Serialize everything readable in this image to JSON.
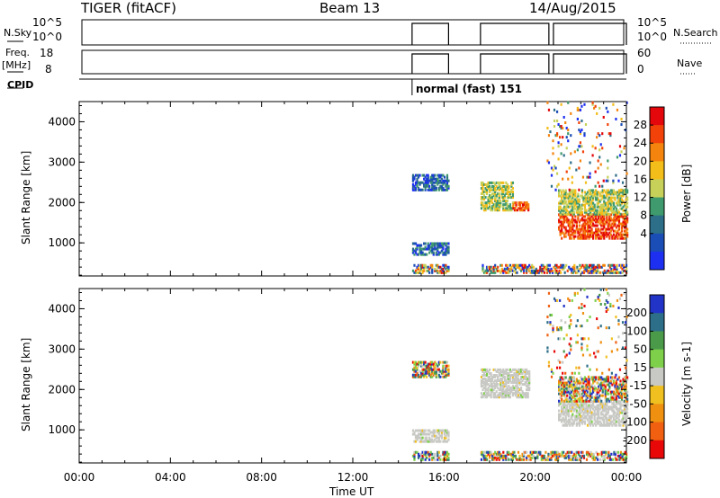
{
  "header": {
    "title": "TIGER (fitACF)",
    "beam": "Beam 13",
    "date": "14/Aug/2015"
  },
  "params_panel": {
    "nsky_label": "N.Sky",
    "nsearch_label": "N.Search",
    "freq_label": "Freq.",
    "freq_unit": "[MHz]",
    "nave_label": "Nave",
    "cpid_label": "CPID",
    "left_top_ticks": [
      "10^5",
      "10^0"
    ],
    "right_top_ticks": [
      "10^5",
      "10^0"
    ],
    "left_freq_ticks": [
      "18",
      "8"
    ],
    "right_nave_ticks": [
      "60",
      "0"
    ],
    "cpid_text": "normal (fast) 151",
    "cpid_start_hour": 14.6
  },
  "chart_data": [
    {
      "type": "heatmap",
      "title": "",
      "ylabel": "Slant Range [km]",
      "xlabel": "",
      "x_ticks": [
        "00:00",
        "04:00",
        "08:00",
        "12:00",
        "16:00",
        "20:00",
        "00:00"
      ],
      "xlim_hours": [
        0,
        24
      ],
      "ylim": [
        180,
        4500
      ],
      "y_ticks": [
        1000,
        2000,
        3000,
        4000
      ],
      "colorbar_label": "Power [dB]",
      "colorbar_ticks": [
        "28",
        "24",
        "20",
        "16",
        "12",
        "8",
        "4"
      ],
      "colorbar_colors": [
        "#e4070b",
        "#f2420a",
        "#f4840e",
        "#f3bd1a",
        "#c7d15a",
        "#3f9a6d",
        "#2d6e88",
        "#1a4db5",
        "#1d2ff0"
      ],
      "regions": [
        {
          "t0": 14.6,
          "t1": 16.2,
          "r0": 250,
          "r1": 450,
          "level": "mixed-high"
        },
        {
          "t0": 14.6,
          "t1": 16.2,
          "r0": 700,
          "r1": 1000,
          "level": "low"
        },
        {
          "t0": 14.6,
          "t1": 16.2,
          "r0": 2300,
          "r1": 2700,
          "level": "low"
        },
        {
          "t0": 17.6,
          "t1": 24.0,
          "r0": 250,
          "r1": 450,
          "level": "mixed-high"
        },
        {
          "t0": 17.6,
          "t1": 19.0,
          "r0": 1800,
          "r1": 2500,
          "level": "mid"
        },
        {
          "t0": 19.0,
          "t1": 19.7,
          "r0": 1800,
          "r1": 2000,
          "level": "high"
        },
        {
          "t0": 21.0,
          "t1": 24.0,
          "r0": 1100,
          "r1": 1700,
          "level": "high"
        },
        {
          "t0": 21.0,
          "t1": 24.0,
          "r0": 1700,
          "r1": 2300,
          "level": "mid"
        },
        {
          "t0": 20.5,
          "t1": 24.0,
          "r0": 2300,
          "r1": 4500,
          "level": "sparse"
        }
      ]
    },
    {
      "type": "heatmap",
      "title": "",
      "ylabel": "Slant Range [km]",
      "xlabel": "Time UT",
      "x_ticks": [
        "00:00",
        "04:00",
        "08:00",
        "12:00",
        "16:00",
        "20:00",
        "00:00"
      ],
      "xlim_hours": [
        0,
        24
      ],
      "ylim": [
        180,
        4500
      ],
      "y_ticks": [
        1000,
        2000,
        3000,
        4000
      ],
      "colorbar_label": "Velocity [m s-1]",
      "colorbar_ticks": [
        "200",
        "100",
        "50",
        "15",
        "-15",
        "-50",
        "-100",
        "-200"
      ],
      "colorbar_colors": [
        "#2233c8",
        "#2d6e88",
        "#4a9a4a",
        "#7ed04a",
        "#c8c8c4",
        "#f0c020",
        "#f09010",
        "#f06010",
        "#e80808"
      ],
      "regions": [
        {
          "t0": 14.6,
          "t1": 16.2,
          "r0": 250,
          "r1": 450,
          "level": "mixed"
        },
        {
          "t0": 14.6,
          "t1": 16.2,
          "r0": 700,
          "r1": 1000,
          "level": "low-velocity"
        },
        {
          "t0": 14.6,
          "t1": 16.2,
          "r0": 2300,
          "r1": 2700,
          "level": "mixed"
        },
        {
          "t0": 17.6,
          "t1": 24.0,
          "r0": 250,
          "r1": 450,
          "level": "mixed"
        },
        {
          "t0": 17.6,
          "t1": 19.7,
          "r0": 1800,
          "r1": 2500,
          "level": "low-velocity"
        },
        {
          "t0": 21.0,
          "t1": 24.0,
          "r0": 1100,
          "r1": 1700,
          "level": "low-velocity"
        },
        {
          "t0": 21.0,
          "t1": 24.0,
          "r0": 1700,
          "r1": 2300,
          "level": "mixed"
        },
        {
          "t0": 20.5,
          "t1": 24.0,
          "r0": 2300,
          "r1": 4500,
          "level": "sparse"
        }
      ]
    }
  ],
  "data_gaps_hours": [
    [
      0,
      14.6
    ],
    [
      16.2,
      17.6
    ],
    [
      20.6,
      20.8
    ]
  ]
}
